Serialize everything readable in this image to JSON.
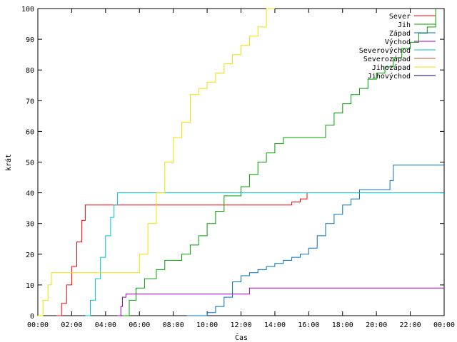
{
  "chart_data": {
    "type": "line",
    "xlabel": "Čas",
    "ylabel": "krát",
    "xlim": [
      0,
      24
    ],
    "ylim": [
      0,
      100
    ],
    "x_tick_labels": [
      "00:00",
      "02:00",
      "04:00",
      "06:00",
      "08:00",
      "10:00",
      "12:00",
      "14:00",
      "16:00",
      "18:00",
      "20:00",
      "22:00",
      "00:00"
    ],
    "y_ticks": [
      0,
      10,
      20,
      30,
      40,
      50,
      60,
      70,
      80,
      90,
      100
    ],
    "grid": false,
    "legend_position": "top-right",
    "series": [
      {
        "name": "Sever",
        "color": "#ff0000",
        "x": [
          1.1,
          1.4,
          1.7,
          2.0,
          2.3,
          2.6,
          2.8,
          3.5,
          5.0,
          7.0,
          9.0,
          11.0,
          13.0,
          14.5,
          15.0,
          15.5,
          15.8,
          15.9
        ],
        "y": [
          0,
          4,
          10,
          16,
          24,
          31,
          36,
          36,
          36,
          36,
          36,
          36,
          36,
          36,
          37,
          38,
          38,
          40
        ]
      },
      {
        "name": "Jih",
        "color": "#00a000",
        "x": [
          5.0,
          5.4,
          5.8,
          6.3,
          7.0,
          7.5,
          8.0,
          8.5,
          9.0,
          9.5,
          10.0,
          10.5,
          11.0,
          11.5,
          12.0,
          12.5,
          13.0,
          13.5,
          14.0,
          14.5,
          15.0,
          15.5,
          16.0,
          16.5,
          17.0,
          17.5,
          18.0,
          18.5,
          19.0,
          19.5,
          20.0,
          20.5,
          21.0,
          21.5,
          22.0,
          22.5,
          23.0,
          23.5
        ],
        "y": [
          0,
          5,
          9,
          12,
          15,
          18,
          18,
          20,
          23,
          26,
          30,
          34,
          39,
          39,
          42,
          46,
          50,
          53,
          56,
          58,
          58,
          58,
          58,
          58,
          62,
          66,
          69,
          72,
          74,
          77,
          79,
          81,
          84,
          87,
          89,
          92,
          94,
          100
        ]
      },
      {
        "name": "Západ",
        "color": "#0070c0",
        "x": [
          8.8,
          10.0,
          10.5,
          11.0,
          11.5,
          12.0,
          12.5,
          13.0,
          13.5,
          14.0,
          14.5,
          15.0,
          15.5,
          16.0,
          16.5,
          17.0,
          17.5,
          18.0,
          18.5,
          19.0,
          19.5,
          20.0,
          20.5,
          20.8,
          21.0,
          21.5,
          22.0,
          22.5,
          23.0,
          24.0
        ],
        "y": [
          0,
          1,
          3,
          6,
          11,
          13,
          14,
          15,
          16,
          17,
          18,
          19,
          20,
          22,
          26,
          30,
          33,
          36,
          38,
          41,
          41,
          41,
          41,
          44,
          49,
          49,
          49,
          49,
          49,
          49
        ]
      },
      {
        "name": "Východ",
        "color": "#a000c0",
        "x": [
          4.7,
          4.9,
          5.0,
          5.2,
          8.0,
          10.0,
          12.0,
          12.4,
          12.5,
          14.0,
          16.0,
          18.0,
          20.0,
          22.0,
          24.0
        ],
        "y": [
          0,
          3,
          6,
          7,
          7,
          7,
          7,
          7,
          9,
          9,
          9,
          9,
          9,
          9,
          9
        ]
      },
      {
        "name": "Severovýchod",
        "color": "#00c0d0",
        "x": [
          2.8,
          3.1,
          3.4,
          3.7,
          4.0,
          4.3,
          4.5,
          4.7,
          5.0,
          8.0,
          12.0,
          16.0,
          20.0,
          24.0
        ],
        "y": [
          0,
          5,
          12,
          19,
          26,
          32,
          36,
          40,
          40,
          40,
          40,
          40,
          40,
          40
        ]
      },
      {
        "name": "Severozápad",
        "color": "#c05020",
        "x": [],
        "y": []
      },
      {
        "name": "Jihozápad",
        "color": "#f0e000",
        "x": [
          0.0,
          0.3,
          0.6,
          0.8,
          1.5,
          3.0,
          4.5,
          5.5,
          6.0,
          6.5,
          7.0,
          7.5,
          8.0,
          8.5,
          9.0,
          9.5,
          10.0,
          10.5,
          11.0,
          11.5,
          12.0,
          12.5,
          13.0,
          13.5,
          14.0
        ],
        "y": [
          0,
          5,
          10,
          14,
          14,
          14,
          14,
          14,
          20,
          30,
          40,
          50,
          58,
          63,
          72,
          74,
          76,
          79,
          82,
          85,
          88,
          91,
          94,
          100,
          100
        ]
      },
      {
        "name": "Jihovýchod",
        "color": "#000080",
        "x": [],
        "y": []
      }
    ]
  }
}
